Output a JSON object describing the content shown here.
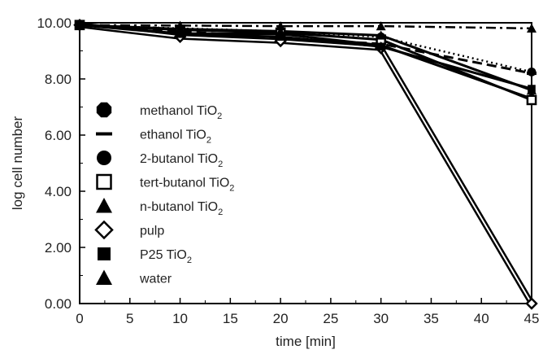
{
  "chart_data": {
    "type": "line",
    "title": "",
    "xlabel": "time [min]",
    "ylabel": "log cell number",
    "xlim": [
      0,
      45
    ],
    "ylim": [
      0,
      10
    ],
    "xticks": [
      "0",
      "5",
      "10",
      "15",
      "20",
      "25",
      "30",
      "35",
      "40",
      "45"
    ],
    "yticks": [
      "0.00",
      "2.00",
      "4.00",
      "6.00",
      "8.00",
      "10.00"
    ],
    "grid": false,
    "legend_position": "left-center",
    "x": [
      0,
      10,
      20,
      30,
      45
    ],
    "series": [
      {
        "name": "methanol TiO2",
        "legend_main": "methanol TiO",
        "legend_sub": "2",
        "marker": "octagon-filled",
        "line": "solid",
        "color": "#000000",
        "values": [
          9.92,
          9.62,
          9.6,
          9.2,
          7.3
        ]
      },
      {
        "name": "ethanol TiO2",
        "legend_main": "ethanol TiO",
        "legend_sub": "2",
        "marker": "dash",
        "line": "dashed",
        "color": "#000000",
        "values": [
          9.92,
          9.7,
          9.45,
          9.25,
          8.2
        ]
      },
      {
        "name": "2-butanol TiO2",
        "legend_main": "2-butanol TiO",
        "legend_sub": "2",
        "marker": "circle-filled",
        "line": "dotted",
        "color": "#000000",
        "values": [
          9.92,
          9.8,
          9.7,
          9.5,
          8.25
        ]
      },
      {
        "name": "tert-butanol TiO2",
        "legend_main": "tert-butanol TiO",
        "legend_sub": "2",
        "marker": "square-open",
        "line": "solid",
        "color": "#000000",
        "values": [
          9.92,
          9.75,
          9.65,
          9.4,
          7.25
        ]
      },
      {
        "name": "n-butanol TiO2",
        "legend_main": "n-butanol TiO",
        "legend_sub": "2",
        "marker": "triangle-filled",
        "line": "solid",
        "color": "#000000",
        "values": [
          9.92,
          9.78,
          9.7,
          9.55,
          7.6
        ]
      },
      {
        "name": "pulp",
        "legend_main": "pulp",
        "legend_sub": "",
        "marker": "diamond-open",
        "line": "solid-double",
        "color": "#000000",
        "values": [
          9.92,
          9.5,
          9.35,
          9.1,
          0.0
        ]
      },
      {
        "name": "P25 TiO2",
        "legend_main": "P25 TiO",
        "legend_sub": "2",
        "marker": "square-filled",
        "line": "solid",
        "color": "#000000",
        "values": [
          9.92,
          9.6,
          9.5,
          9.15,
          7.65
        ]
      },
      {
        "name": "water",
        "legend_main": "water",
        "legend_sub": "",
        "marker": "triangle-filled",
        "line": "dashdot",
        "color": "#000000",
        "values": [
          9.92,
          9.9,
          9.88,
          9.88,
          9.8
        ]
      }
    ]
  }
}
